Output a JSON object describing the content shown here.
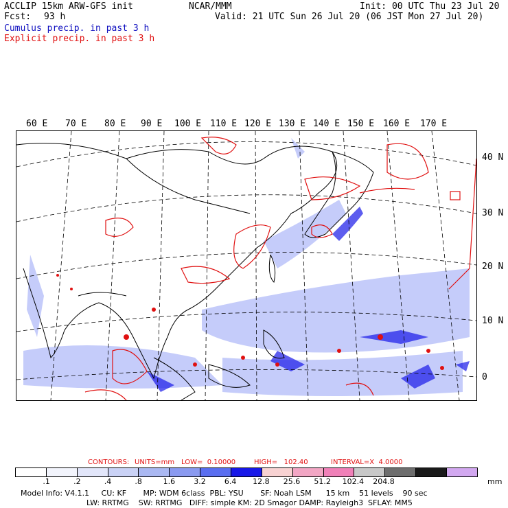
{
  "header": {
    "line1_left": "ACCLIP 15km ARW-GFS init",
    "line1_center": "NCAR/MMM",
    "line1_right": "Init: 00 UTC Thu 23 Jul 20",
    "fcst_label": "Fcst:",
    "fcst_value": "93 h",
    "valid": "Valid: 21 UTC Sun 26 Jul 20 (06 JST Mon 27 Jul 20)",
    "legend_cumulus": "Cumulus precip. in past 3 h",
    "legend_explicit": "Explicit precip. in past 3 h"
  },
  "colors": {
    "cumulus": "#1010c0",
    "explicit": "#e01010",
    "coast": "#000000",
    "grid": "#000000"
  },
  "map": {
    "lon_labels": [
      "60 E",
      "70 E",
      "80 E",
      "90 E",
      "100 E",
      "110 E",
      "120 E",
      "130 E",
      "140 E",
      "150 E",
      "160 E",
      "170 E"
    ],
    "lat_labels": [
      "40 N",
      "30 N",
      "20 N",
      "10 N",
      "0"
    ]
  },
  "contours": {
    "label": "CONTOURS:",
    "units": "UNITS=mm",
    "low": "LOW=  0.10000",
    "high": "HIGH=   102.40",
    "interval": "INTERVAL=X  4.0000"
  },
  "colorbar": {
    "unit": "mm",
    "ticks": [
      ".1",
      ".2",
      ".4",
      ".8",
      "1.6",
      "3.2",
      "6.4",
      "12.8",
      "25.6",
      "51.2",
      "102.4",
      "204.8"
    ],
    "colors": [
      "#ffffff",
      "#f2f4fc",
      "#e2e6fa",
      "#cad2f6",
      "#aab8f2",
      "#8a9af0",
      "#5a6ef0",
      "#1818e8",
      "#f8d2d2",
      "#f2a6c4",
      "#f080b8",
      "#c8c8c8",
      "#6e6e6e",
      "#1a1a1a",
      "#d2a8f0"
    ]
  },
  "footer": {
    "line1": "Model Info: V4.1.1     CU: KF       MP: WDM 6class  PBL: YSU       SF: Noah LSM      15 km    51 levels    90 sec",
    "line2": "LW: RRTMG    SW: RRTMG   DIFF: simple KM: 2D Smagor DAMP: Rayleigh3  SFLAY: MM5"
  }
}
